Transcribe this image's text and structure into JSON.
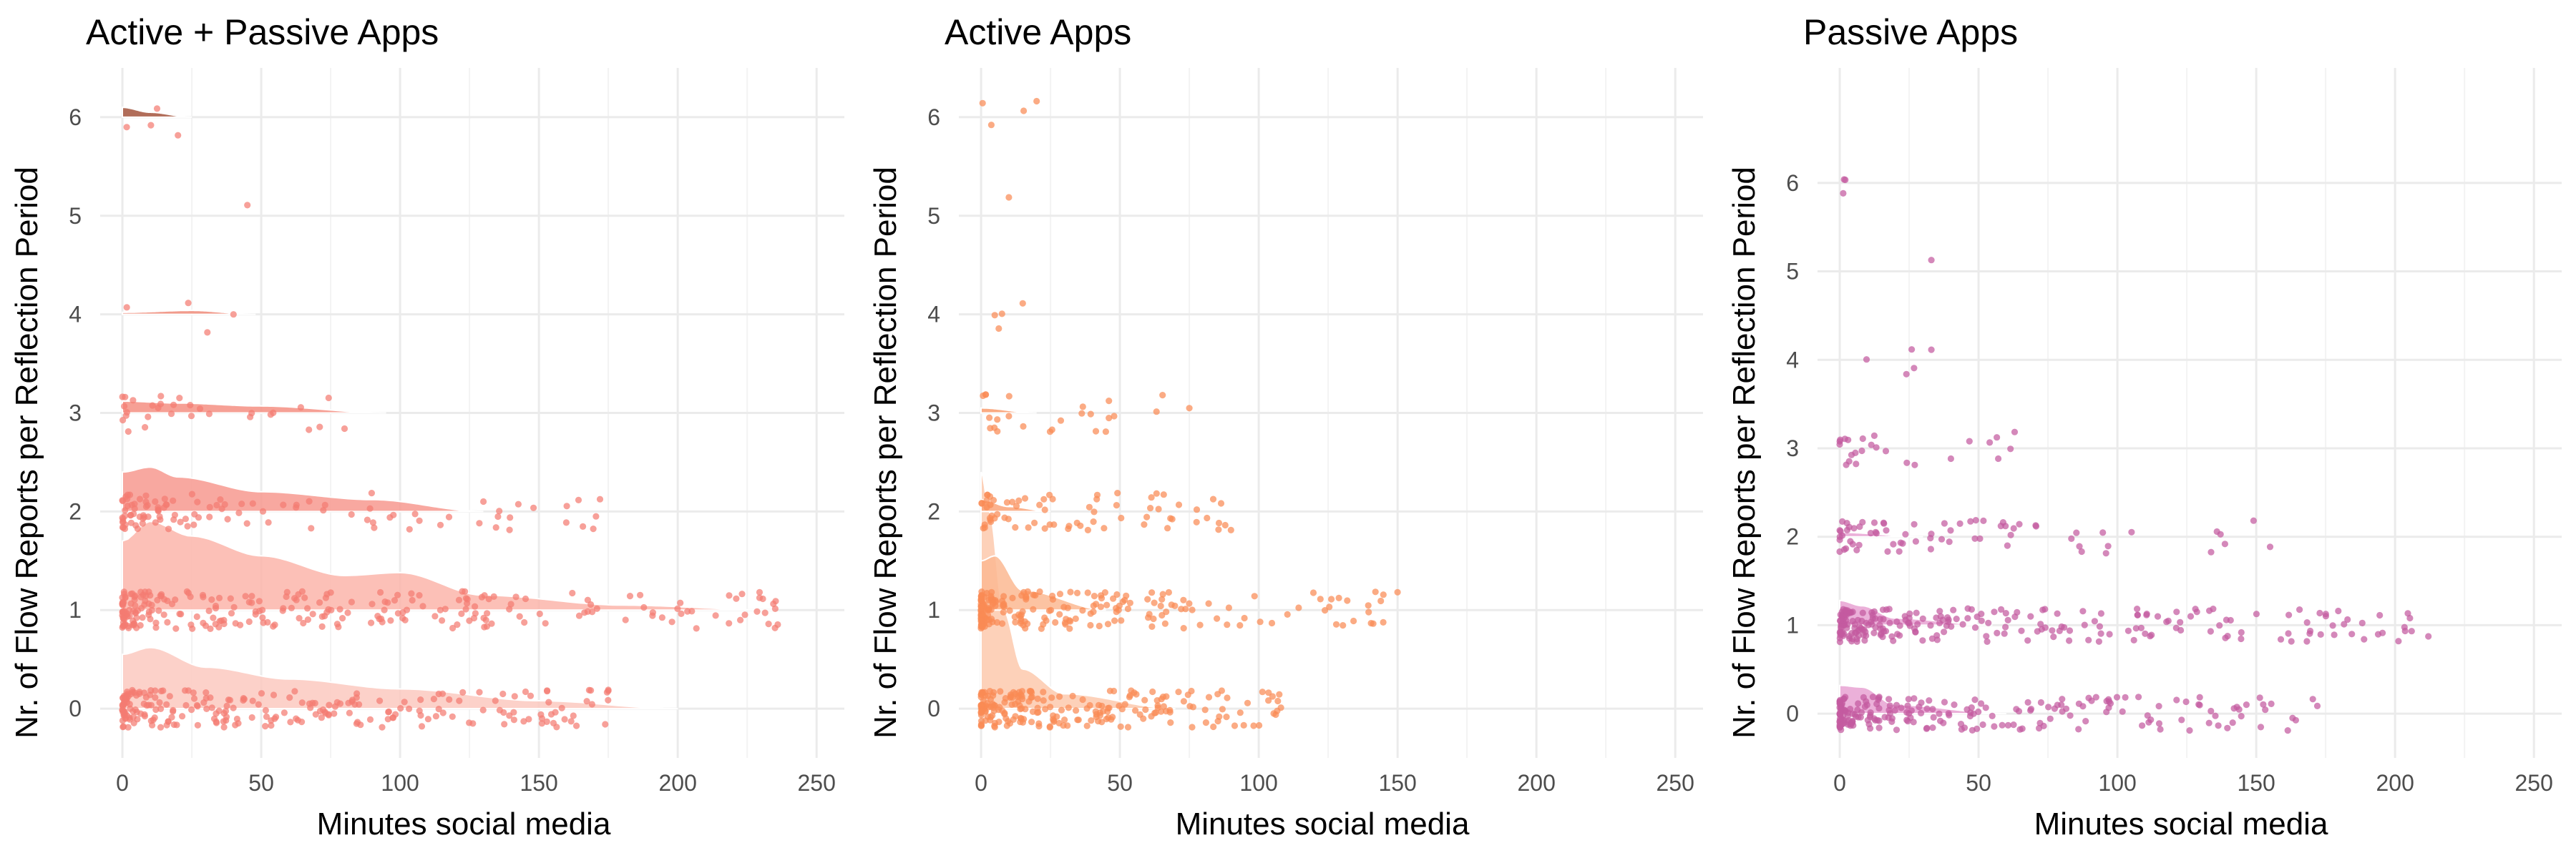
{
  "chart_data": [
    {
      "type": "scatter",
      "title": "Active + Passive Apps",
      "xlabel": "Minutes social media",
      "ylabel": "Nr. of Flow Reports per Reflection Period",
      "xlim": [
        -8,
        260
      ],
      "ylim": [
        -0.5,
        6.5
      ],
      "x_ticks": [
        0,
        50,
        100,
        150,
        200,
        250
      ],
      "y_ticks": [
        0,
        1,
        2,
        3,
        4,
        5,
        6
      ],
      "grid": true,
      "point_color": "#f47c72",
      "density_colors": {
        "0": "#fcc9c0",
        "1": "#fbb5aa",
        "2": "#f7998f",
        "3": "#f58f82",
        "4": "#ef8a78",
        "5": "#e57a67",
        "6": "#a3533c"
      },
      "densities": [
        {
          "level": 0,
          "x_max": 200,
          "peaks": [
            [
              0,
              0.55
            ],
            [
              10,
              0.62
            ],
            [
              30,
              0.42
            ],
            [
              60,
              0.3
            ],
            [
              100,
              0.2
            ],
            [
              150,
              0.08
            ],
            [
              200,
              0
            ]
          ]
        },
        {
          "level": 1,
          "x_max": 235,
          "peaks": [
            [
              0,
              0.7
            ],
            [
              10,
              0.9
            ],
            [
              25,
              0.75
            ],
            [
              50,
              0.55
            ],
            [
              80,
              0.35
            ],
            [
              100,
              0.38
            ],
            [
              130,
              0.15
            ],
            [
              180,
              0.05
            ],
            [
              235,
              0
            ]
          ]
        },
        {
          "level": 2,
          "x_max": 130,
          "peaks": [
            [
              0,
              0.4
            ],
            [
              10,
              0.45
            ],
            [
              20,
              0.35
            ],
            [
              50,
              0.2
            ],
            [
              90,
              0.12
            ],
            [
              130,
              0
            ]
          ]
        },
        {
          "level": 3,
          "x_max": 95,
          "peaks": [
            [
              0,
              0.12
            ],
            [
              20,
              0.1
            ],
            [
              50,
              0.07
            ],
            [
              95,
              0
            ]
          ]
        },
        {
          "level": 4,
          "x_max": 48,
          "peaks": [
            [
              0,
              0.02
            ],
            [
              25,
              0.04
            ],
            [
              48,
              0
            ]
          ]
        },
        {
          "level": 5,
          "x_max": 0,
          "peaks": []
        },
        {
          "level": 6,
          "x_max": 25,
          "peaks": [
            [
              0,
              0.1
            ],
            [
              10,
              0.05
            ],
            [
              25,
              0
            ]
          ]
        }
      ],
      "points": [
        {
          "level": 0,
          "n": 240,
          "x_max": 175,
          "skew": 2.0
        },
        {
          "level": 1,
          "n": 260,
          "x_max": 236,
          "skew": 2.2
        },
        {
          "level": 2,
          "n": 110,
          "x_max": 172,
          "skew": 2.2
        },
        {
          "level": 3,
          "n": 30,
          "x_max": 80,
          "skew": 1.8
        },
        {
          "level": 4,
          "n": 4,
          "x_max": 40,
          "skew": 1.0
        },
        {
          "level": 5,
          "n": 1,
          "x_max": 45,
          "skew": 1.0
        },
        {
          "level": 6,
          "n": 4,
          "x_max": 20,
          "skew": 1.0
        }
      ]
    },
    {
      "type": "scatter",
      "title": "Active Apps",
      "xlabel": "Minutes social media",
      "ylabel": "Nr. of Flow Reports per Reflection Period",
      "xlim": [
        -8,
        260
      ],
      "ylim": [
        -0.5,
        6.5
      ],
      "x_ticks": [
        0,
        50,
        100,
        150,
        200,
        250
      ],
      "y_ticks": [
        0,
        1,
        2,
        3,
        4,
        5,
        6
      ],
      "grid": true,
      "point_color": "#f98b54",
      "density_colors": {
        "0": "#fdc9ad",
        "1": "#fcb892",
        "2": "#faa57a",
        "3": "#f99b6c",
        "4": "#f99b6c",
        "5": "#f99b6c",
        "6": "#f99b6c"
      },
      "densities": [
        {
          "level": 0,
          "x_max": 70,
          "peaks": [
            [
              0,
              2.4
            ],
            [
              3,
              2.0
            ],
            [
              8,
              1.0
            ],
            [
              15,
              0.4
            ],
            [
              30,
              0.15
            ],
            [
              70,
              0
            ]
          ]
        },
        {
          "level": 1,
          "x_max": 45,
          "peaks": [
            [
              0,
              0.5
            ],
            [
              5,
              0.55
            ],
            [
              15,
              0.2
            ],
            [
              45,
              0
            ]
          ]
        },
        {
          "level": 2,
          "x_max": 25,
          "peaks": [
            [
              0,
              0.12
            ],
            [
              10,
              0.05
            ],
            [
              25,
              0
            ]
          ]
        },
        {
          "level": 3,
          "x_max": 20,
          "peaks": [
            [
              0,
              0.05
            ],
            [
              20,
              0
            ]
          ]
        }
      ],
      "points": [
        {
          "level": 0,
          "n": 220,
          "x_max": 108,
          "skew": 2.5
        },
        {
          "level": 1,
          "n": 210,
          "x_max": 150,
          "skew": 2.8
        },
        {
          "level": 2,
          "n": 70,
          "x_max": 90,
          "skew": 2.0
        },
        {
          "level": 3,
          "n": 25,
          "x_max": 75,
          "skew": 2.0
        },
        {
          "level": 4,
          "n": 4,
          "x_max": 15,
          "skew": 1.0
        },
        {
          "level": 5,
          "n": 1,
          "x_max": 10,
          "skew": 1.0
        },
        {
          "level": 6,
          "n": 4,
          "x_max": 20,
          "skew": 1.0
        }
      ]
    },
    {
      "type": "scatter",
      "title": "Passive Apps",
      "xlabel": "Minutes social media",
      "ylabel": "Nr. of Flow Reports per Reflection Period",
      "xlim": [
        -8,
        260
      ],
      "ylim": [
        -0.5,
        7.3
      ],
      "x_ticks": [
        0,
        50,
        100,
        150,
        200,
        250
      ],
      "y_ticks": [
        0,
        1,
        2,
        3,
        4,
        5,
        6
      ],
      "grid": true,
      "point_color": "#c45aa0",
      "density_colors": {
        "0": "#e8a2d2",
        "1": "#e8a2d2",
        "2": "#e8a2d2",
        "3": "#e8a2d2",
        "4": "#e8a2d2",
        "5": "#e8a2d2",
        "6": "#e8a2d2"
      },
      "densities": [
        {
          "level": 0,
          "x_max": 60,
          "peaks": [
            [
              0,
              0.32
            ],
            [
              8,
              0.3
            ],
            [
              20,
              0.1
            ],
            [
              60,
              0
            ]
          ]
        },
        {
          "level": 1,
          "x_max": 55,
          "peaks": [
            [
              0,
              0.28
            ],
            [
              8,
              0.22
            ],
            [
              20,
              0.08
            ],
            [
              55,
              0
            ]
          ]
        },
        {
          "level": 2,
          "x_max": 30,
          "peaks": [
            [
              0,
              0.05
            ],
            [
              30,
              0
            ]
          ]
        }
      ],
      "points": [
        {
          "level": 0,
          "n": 210,
          "x_max": 172,
          "skew": 2.4
        },
        {
          "level": 1,
          "n": 240,
          "x_max": 212,
          "skew": 2.4
        },
        {
          "level": 2,
          "n": 70,
          "x_max": 155,
          "skew": 2.2
        },
        {
          "level": 3,
          "n": 25,
          "x_max": 63,
          "skew": 1.8
        },
        {
          "level": 4,
          "n": 5,
          "x_max": 33,
          "skew": 1.0
        },
        {
          "level": 5,
          "n": 1,
          "x_max": 33,
          "skew": 1.0
        },
        {
          "level": 6,
          "n": 3,
          "x_max": 2,
          "skew": 1.0
        }
      ]
    }
  ]
}
